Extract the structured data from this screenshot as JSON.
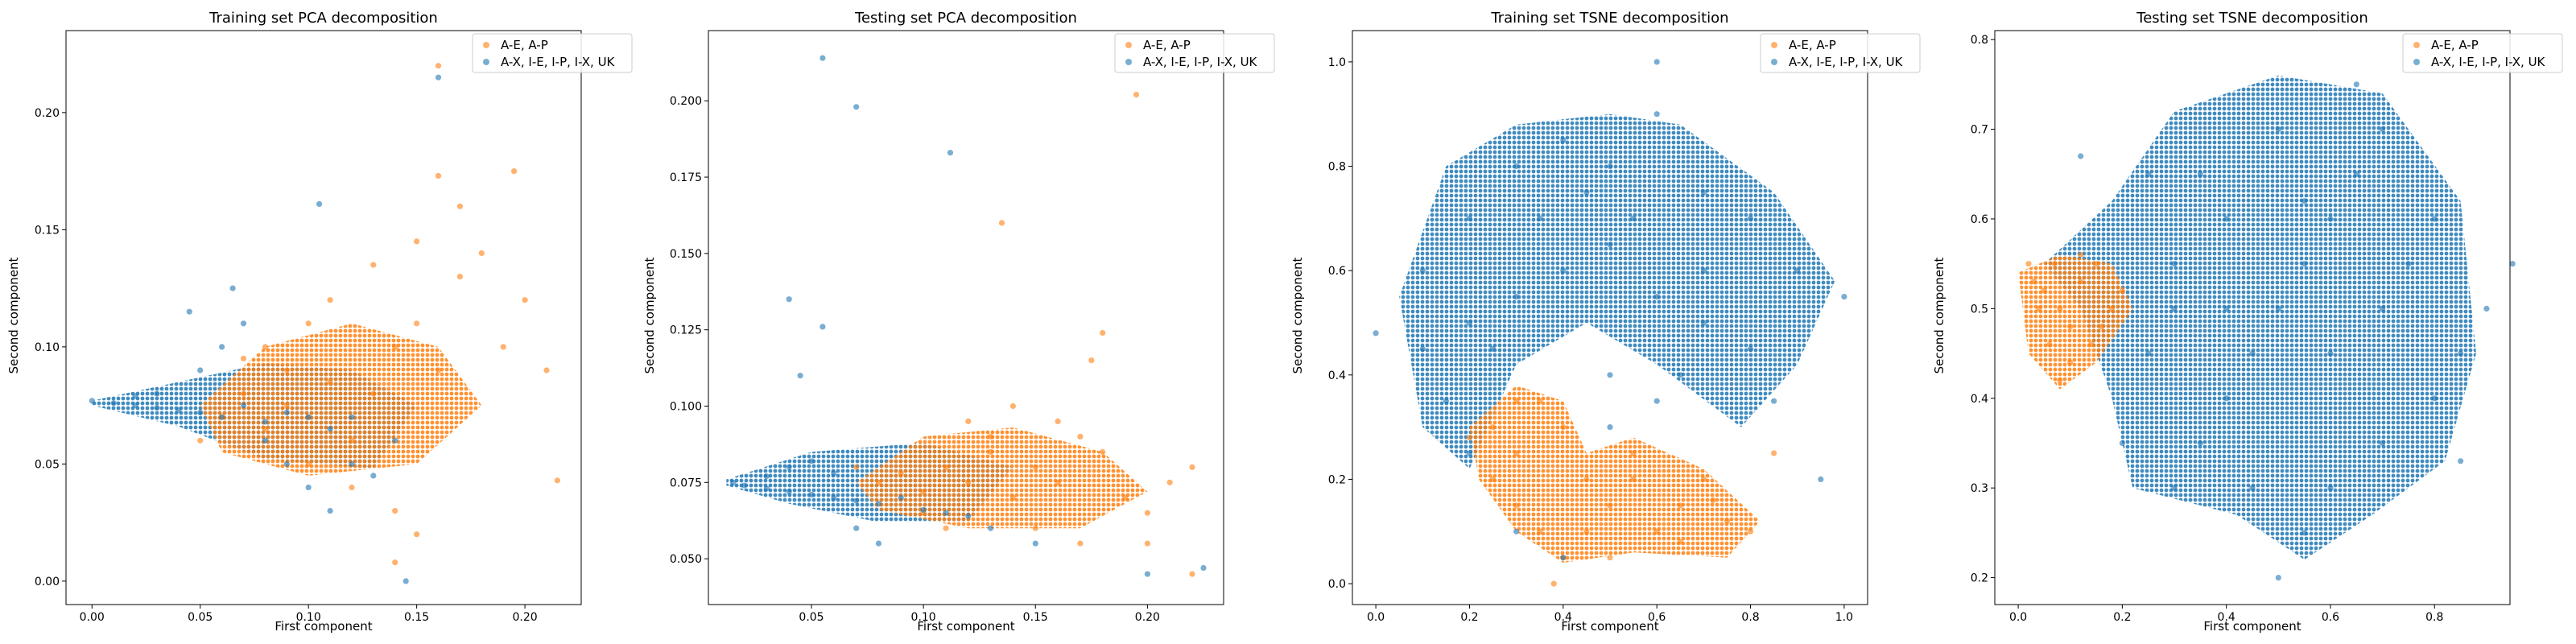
{
  "figure": {
    "colors": {
      "orange": "#ff7f0e",
      "blue": "#1f77b4"
    },
    "legend": [
      "A-E, A-P",
      "A-X, I-E, I-P, I-X, UK"
    ]
  },
  "chart_data": [
    {
      "type": "scatter",
      "title": "Training set PCA decomposition",
      "xlabel": "First component",
      "ylabel": "Second component",
      "xlim": [
        -0.012,
        0.226
      ],
      "ylim": [
        -0.01,
        0.235
      ],
      "xticks": [
        "0.00",
        "0.05",
        "0.10",
        "0.15",
        "0.20"
      ],
      "yticks": [
        "0.00",
        "0.05",
        "0.10",
        "0.15",
        "0.20"
      ],
      "legend_position": "top-right",
      "series": [
        {
          "name": "A-E, A-P",
          "color": "#ff7f0e",
          "points": [
            [
              0.06,
              0.07
            ],
            [
              0.07,
              0.08
            ],
            [
              0.08,
              0.065
            ],
            [
              0.09,
              0.075
            ],
            [
              0.1,
              0.07
            ],
            [
              0.11,
              0.085
            ],
            [
              0.09,
              0.09
            ],
            [
              0.12,
              0.06
            ],
            [
              0.13,
              0.08
            ],
            [
              0.14,
              0.1
            ],
            [
              0.15,
              0.11
            ],
            [
              0.16,
              0.09
            ],
            [
              0.17,
              0.13
            ],
            [
              0.18,
              0.14
            ],
            [
              0.19,
              0.1
            ],
            [
              0.2,
              0.12
            ],
            [
              0.21,
              0.09
            ],
            [
              0.16,
              0.173
            ],
            [
              0.195,
              0.175
            ],
            [
              0.12,
              0.04
            ],
            [
              0.14,
              0.03
            ],
            [
              0.1,
              0.05
            ],
            [
              0.08,
              0.1
            ],
            [
              0.11,
              0.12
            ],
            [
              0.13,
              0.135
            ],
            [
              0.15,
              0.145
            ],
            [
              0.17,
              0.16
            ],
            [
              0.15,
              0.02
            ],
            [
              0.16,
              0.22
            ],
            [
              0.215,
              0.043
            ],
            [
              0.14,
              0.008
            ],
            [
              0.05,
              0.06
            ],
            [
              0.07,
              0.095
            ],
            [
              0.1,
              0.11
            ]
          ]
        },
        {
          "name": "A-X, I-E, I-P, I-X, UK",
          "color": "#1f77b4",
          "points": [
            [
              0.0,
              0.077
            ],
            [
              0.01,
              0.076
            ],
            [
              0.02,
              0.075
            ],
            [
              0.03,
              0.074
            ],
            [
              0.04,
              0.073
            ],
            [
              0.05,
              0.072
            ],
            [
              0.06,
              0.07
            ],
            [
              0.07,
              0.075
            ],
            [
              0.08,
              0.068
            ],
            [
              0.09,
              0.072
            ],
            [
              0.1,
              0.07
            ],
            [
              0.11,
              0.065
            ],
            [
              0.12,
              0.07
            ],
            [
              0.05,
              0.09
            ],
            [
              0.06,
              0.1
            ],
            [
              0.07,
              0.11
            ],
            [
              0.08,
              0.06
            ],
            [
              0.09,
              0.05
            ],
            [
              0.1,
              0.04
            ],
            [
              0.11,
              0.03
            ],
            [
              0.12,
              0.05
            ],
            [
              0.065,
              0.125
            ],
            [
              0.105,
              0.161
            ],
            [
              0.045,
              0.115
            ],
            [
              0.02,
              0.079
            ],
            [
              0.03,
              0.08
            ],
            [
              0.145,
              0.0
            ],
            [
              0.16,
              0.215
            ],
            [
              0.13,
              0.045
            ],
            [
              0.14,
              0.06
            ]
          ]
        }
      ]
    },
    {
      "type": "scatter",
      "title": "Testing set PCA decomposition",
      "xlabel": "First component",
      "ylabel": "Second component",
      "xlim": [
        0.004,
        0.234
      ],
      "ylim": [
        0.035,
        0.223
      ],
      "xticks": [
        "0.05",
        "0.10",
        "0.15",
        "0.20"
      ],
      "yticks": [
        "0.050",
        "0.075",
        "0.100",
        "0.125",
        "0.150",
        "0.175",
        "0.200"
      ],
      "legend_position": "top-right",
      "series": [
        {
          "name": "A-E, A-P",
          "color": "#ff7f0e",
          "points": [
            [
              0.08,
              0.075
            ],
            [
              0.09,
              0.078
            ],
            [
              0.1,
              0.072
            ],
            [
              0.11,
              0.08
            ],
            [
              0.12,
              0.075
            ],
            [
              0.13,
              0.085
            ],
            [
              0.14,
              0.07
            ],
            [
              0.15,
              0.08
            ],
            [
              0.16,
              0.075
            ],
            [
              0.17,
              0.09
            ],
            [
              0.18,
              0.085
            ],
            [
              0.19,
              0.07
            ],
            [
              0.2,
              0.065
            ],
            [
              0.21,
              0.075
            ],
            [
              0.12,
              0.095
            ],
            [
              0.14,
              0.1
            ],
            [
              0.16,
              0.095
            ],
            [
              0.18,
              0.124
            ],
            [
              0.195,
              0.202
            ],
            [
              0.135,
              0.16
            ],
            [
              0.22,
              0.08
            ],
            [
              0.1,
              0.065
            ],
            [
              0.11,
              0.06
            ],
            [
              0.15,
              0.06
            ],
            [
              0.17,
              0.055
            ],
            [
              0.2,
              0.055
            ],
            [
              0.13,
              0.09
            ],
            [
              0.07,
              0.08
            ],
            [
              0.22,
              0.045
            ],
            [
              0.175,
              0.115
            ]
          ]
        },
        {
          "name": "A-X, I-E, I-P, I-X, UK",
          "color": "#1f77b4",
          "points": [
            [
              0.015,
              0.075
            ],
            [
              0.02,
              0.074
            ],
            [
              0.03,
              0.073
            ],
            [
              0.04,
              0.072
            ],
            [
              0.05,
              0.071
            ],
            [
              0.06,
              0.07
            ],
            [
              0.07,
              0.069
            ],
            [
              0.08,
              0.068
            ],
            [
              0.09,
              0.07
            ],
            [
              0.1,
              0.066
            ],
            [
              0.11,
              0.065
            ],
            [
              0.12,
              0.064
            ],
            [
              0.04,
              0.08
            ],
            [
              0.05,
              0.082
            ],
            [
              0.06,
              0.078
            ],
            [
              0.03,
              0.077
            ],
            [
              0.055,
              0.214
            ],
            [
              0.07,
              0.198
            ],
            [
              0.112,
              0.183
            ],
            [
              0.04,
              0.135
            ],
            [
              0.055,
              0.126
            ],
            [
              0.045,
              0.11
            ],
            [
              0.07,
              0.06
            ],
            [
              0.08,
              0.055
            ],
            [
              0.2,
              0.045
            ],
            [
              0.225,
              0.047
            ],
            [
              0.13,
              0.06
            ],
            [
              0.15,
              0.055
            ]
          ]
        }
      ]
    },
    {
      "type": "scatter",
      "title": "Training set TSNE decomposition",
      "xlabel": "First component",
      "ylabel": "Second component",
      "xlim": [
        -0.05,
        1.05
      ],
      "ylim": [
        -0.04,
        1.06
      ],
      "xticks": [
        "0.0",
        "0.2",
        "0.4",
        "0.6",
        "0.8",
        "1.0"
      ],
      "yticks": [
        "0.0",
        "0.2",
        "0.4",
        "0.6",
        "0.8",
        "1.0"
      ],
      "legend_position": "top-right",
      "series": [
        {
          "name": "A-E, A-P",
          "color": "#ff7f0e",
          "points": [
            [
              0.25,
              0.3
            ],
            [
              0.3,
              0.25
            ],
            [
              0.35,
              0.35
            ],
            [
              0.3,
              0.35
            ],
            [
              0.4,
              0.3
            ],
            [
              0.45,
              0.2
            ],
            [
              0.5,
              0.15
            ],
            [
              0.55,
              0.2
            ],
            [
              0.6,
              0.1
            ],
            [
              0.65,
              0.15
            ],
            [
              0.7,
              0.2
            ],
            [
              0.75,
              0.12
            ],
            [
              0.8,
              0.1
            ],
            [
              0.4,
              0.05
            ],
            [
              0.35,
              0.1
            ],
            [
              0.3,
              0.15
            ],
            [
              0.25,
              0.2
            ],
            [
              0.2,
              0.28
            ],
            [
              0.85,
              0.25
            ],
            [
              0.5,
              0.05
            ],
            [
              0.45,
              0.1
            ],
            [
              0.55,
              0.25
            ],
            [
              0.65,
              0.08
            ],
            [
              0.72,
              0.16
            ],
            [
              0.38,
              0.0
            ]
          ]
        },
        {
          "name": "A-X, I-E, I-P, I-X, UK",
          "color": "#1f77b4",
          "points": [
            [
              0.1,
              0.6
            ],
            [
              0.2,
              0.7
            ],
            [
              0.3,
              0.8
            ],
            [
              0.4,
              0.85
            ],
            [
              0.5,
              0.8
            ],
            [
              0.6,
              0.9
            ],
            [
              0.7,
              0.75
            ],
            [
              0.8,
              0.7
            ],
            [
              0.9,
              0.6
            ],
            [
              1.0,
              0.55
            ],
            [
              0.2,
              0.5
            ],
            [
              0.3,
              0.55
            ],
            [
              0.4,
              0.6
            ],
            [
              0.5,
              0.65
            ],
            [
              0.6,
              0.55
            ],
            [
              0.7,
              0.5
            ],
            [
              0.8,
              0.45
            ],
            [
              0.85,
              0.35
            ],
            [
              0.1,
              0.45
            ],
            [
              0.15,
              0.35
            ],
            [
              0.2,
              0.25
            ],
            [
              0.3,
              0.1
            ],
            [
              0.4,
              0.05
            ],
            [
              0.5,
              0.3
            ],
            [
              0.6,
              0.35
            ],
            [
              0.65,
              0.4
            ],
            [
              0.6,
              1.0
            ],
            [
              0.95,
              0.2
            ],
            [
              0.0,
              0.48
            ],
            [
              0.25,
              0.45
            ],
            [
              0.5,
              0.4
            ],
            [
              0.7,
              0.6
            ],
            [
              0.35,
              0.7
            ],
            [
              0.45,
              0.75
            ],
            [
              0.55,
              0.7
            ]
          ]
        }
      ]
    },
    {
      "type": "scatter",
      "title": "Testing set TSNE decomposition",
      "xlabel": "First component",
      "ylabel": "Second component",
      "xlim": [
        -0.045,
        0.945
      ],
      "ylim": [
        0.17,
        0.81
      ],
      "xticks": [
        "0.0",
        "0.2",
        "0.4",
        "0.6",
        "0.8"
      ],
      "yticks": [
        "0.2",
        "0.3",
        "0.4",
        "0.5",
        "0.6",
        "0.7",
        "0.8"
      ],
      "legend_position": "top-right",
      "series": [
        {
          "name": "A-E, A-P",
          "color": "#ff7f0e",
          "points": [
            [
              0.02,
              0.55
            ],
            [
              0.05,
              0.52
            ],
            [
              0.08,
              0.5
            ],
            [
              0.1,
              0.48
            ],
            [
              0.12,
              0.53
            ],
            [
              0.15,
              0.55
            ],
            [
              0.18,
              0.5
            ],
            [
              0.06,
              0.46
            ],
            [
              0.1,
              0.44
            ],
            [
              0.14,
              0.46
            ],
            [
              0.04,
              0.5
            ],
            [
              0.08,
              0.42
            ],
            [
              0.2,
              0.52
            ],
            [
              0.12,
              0.56
            ],
            [
              0.16,
              0.48
            ],
            [
              0.03,
              0.53
            ],
            [
              0.07,
              0.55
            ]
          ]
        },
        {
          "name": "A-X, I-E, I-P, I-X, UK",
          "color": "#1f77b4",
          "points": [
            [
              0.3,
              0.3
            ],
            [
              0.35,
              0.35
            ],
            [
              0.4,
              0.4
            ],
            [
              0.45,
              0.45
            ],
            [
              0.5,
              0.5
            ],
            [
              0.55,
              0.55
            ],
            [
              0.6,
              0.6
            ],
            [
              0.65,
              0.65
            ],
            [
              0.7,
              0.7
            ],
            [
              0.5,
              0.7
            ],
            [
              0.4,
              0.6
            ],
            [
              0.3,
              0.55
            ],
            [
              0.35,
              0.65
            ],
            [
              0.6,
              0.3
            ],
            [
              0.7,
              0.35
            ],
            [
              0.8,
              0.4
            ],
            [
              0.85,
              0.45
            ],
            [
              0.9,
              0.5
            ],
            [
              0.75,
              0.55
            ],
            [
              0.55,
              0.25
            ],
            [
              0.5,
              0.2
            ],
            [
              0.2,
              0.35
            ],
            [
              0.25,
              0.45
            ],
            [
              0.3,
              0.5
            ],
            [
              0.65,
              0.75
            ],
            [
              0.25,
              0.65
            ],
            [
              0.45,
              0.3
            ],
            [
              0.6,
              0.45
            ],
            [
              0.7,
              0.5
            ],
            [
              0.8,
              0.6
            ],
            [
              0.85,
              0.33
            ],
            [
              0.12,
              0.67
            ],
            [
              0.95,
              0.55
            ],
            [
              0.55,
              0.62
            ],
            [
              0.4,
              0.5
            ]
          ]
        }
      ]
    }
  ]
}
